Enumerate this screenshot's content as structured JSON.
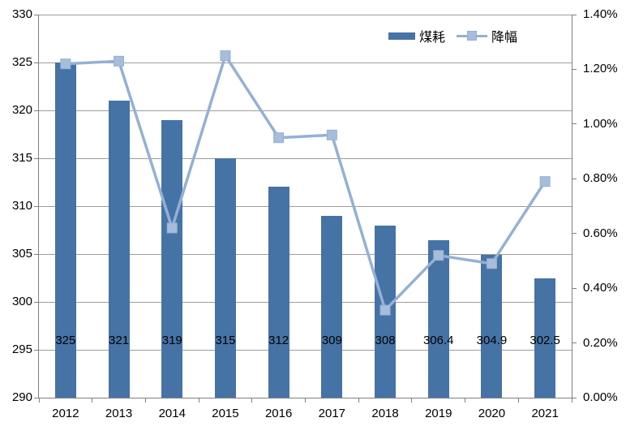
{
  "chart_data": {
    "type": "combo-bar-line",
    "title": "",
    "categories": [
      "2012",
      "2013",
      "2014",
      "2015",
      "2016",
      "2017",
      "2018",
      "2019",
      "2020",
      "2021"
    ],
    "series": [
      {
        "name": "煤耗",
        "type": "bar",
        "axis": "left",
        "values": [
          325,
          321,
          319,
          315,
          312,
          309,
          308,
          306.4,
          304.9,
          302.5
        ],
        "data_labels": [
          "325",
          "321",
          "319",
          "315",
          "312",
          "309",
          "308",
          "306.4",
          "304.9",
          "302.5"
        ],
        "color": "#4673a5"
      },
      {
        "name": "降幅",
        "type": "line",
        "axis": "right",
        "values_percent": [
          1.22,
          1.23,
          0.62,
          1.25,
          0.95,
          0.96,
          0.32,
          0.52,
          0.49,
          0.79
        ],
        "line_color": "#95b0d4",
        "marker": "square",
        "marker_color": "#a6bddc"
      }
    ],
    "left_axis": {
      "min": 290,
      "max": 330,
      "step": 5,
      "tick_labels": [
        "290",
        "295",
        "300",
        "305",
        "310",
        "315",
        "320",
        "325",
        "330"
      ]
    },
    "right_axis": {
      "min": 0,
      "max": 1.4,
      "step": 0.2,
      "tick_labels": [
        "0.00%",
        "0.20%",
        "0.40%",
        "0.60%",
        "0.80%",
        "1.00%",
        "1.20%",
        "1.40%"
      ]
    },
    "grid": true,
    "legend_position": "top"
  },
  "colors": {
    "bar": "#4673a5",
    "line": "#95b0d4",
    "marker": "#a6bddc",
    "gridline": "#9d9d9d",
    "axis": "#808080",
    "text": "#000000",
    "background": "#ffffff"
  }
}
